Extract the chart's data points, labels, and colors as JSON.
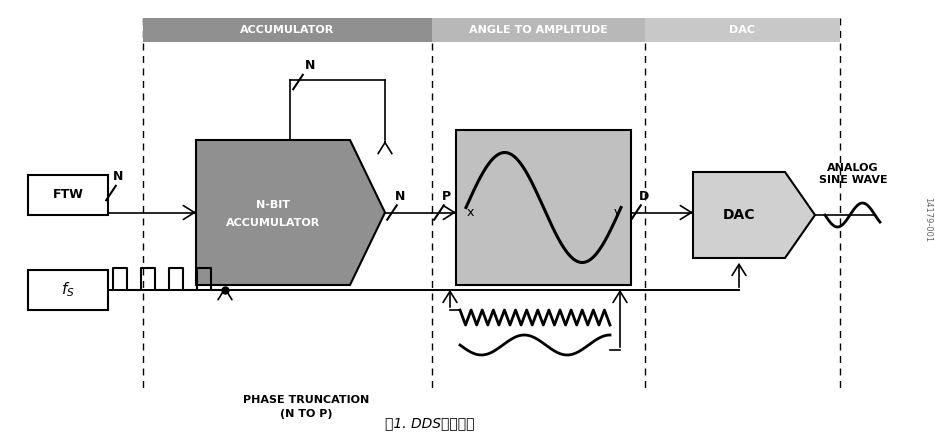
{
  "title": "图1. DDS功能框图",
  "bg_color": "#ffffff",
  "section_labels": [
    "ACCUMULATOR",
    "ANGLE TO AMPLITUDE",
    "DAC"
  ],
  "acc_header_color": "#909090",
  "ata_header_color": "#b8b8b8",
  "dac_header_color": "#c8c8c8",
  "acc_shape_color": "#909090",
  "sine_block_color": "#c0c0c0",
  "dac_shape_color": "#d0d0d0",
  "watermark": "14179-001",
  "analog_label": "ANALOG\nSINE WAVE",
  "phase_trunc_label": "PHASE TRUNCATION\n(N TO P)"
}
